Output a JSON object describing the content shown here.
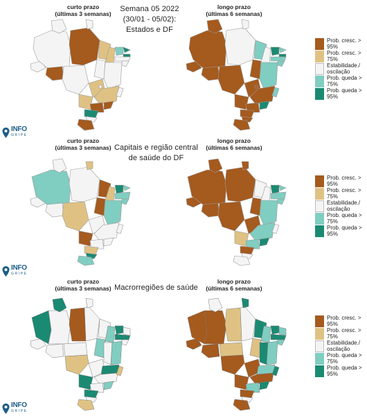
{
  "colors": {
    "prob_cresc_95": "#a55a1e",
    "prob_cresc_75": "#dfc283",
    "estabilidade": "#f4f4f4",
    "prob_queda_75": "#80cdc1",
    "prob_queda_95": "#1b8a73",
    "border": "#aaaaaa"
  },
  "logo": {
    "name": "INFO",
    "sub": "GRIPE"
  },
  "legend": [
    {
      "label": "Prob. cresc. > 95%",
      "color": "#a55a1e"
    },
    {
      "label": "Prob. cresc. > 75%",
      "color": "#dfc283"
    },
    {
      "label": "Estabilidade./ oscilação",
      "color": "#f4f4f4"
    },
    {
      "label": "Prob. queda > 75%",
      "color": "#80cdc1"
    },
    {
      "label": "Prob. queda > 95%",
      "color": "#1b8a73"
    }
  ],
  "rows": [
    {
      "title_lines": [
        "Semana 05 2022",
        "(30/01 - 05/02):",
        "Estados e DF"
      ],
      "left_label_1": "curto prazo",
      "left_label_2": "(últimas 3 semanas)",
      "right_label_1": "longo prazo",
      "right_label_2": "(últimas 6 semanas)",
      "short_map_icon": "brazil-states-short-term-map",
      "long_map_icon": "brazil-states-long-term-map"
    },
    {
      "title_lines": [
        "Capitais e região central",
        "de saúde do DF"
      ],
      "left_label_1": "curto prazo",
      "left_label_2": "(últimas 3 semanas)",
      "right_label_1": "longo prazo",
      "right_label_2": "(últimas 6 semanas)",
      "short_map_icon": "brazil-capitals-short-term-map",
      "long_map_icon": "brazil-capitals-long-term-map"
    },
    {
      "title_lines": [
        "Macrorregiões de saúde"
      ],
      "left_label_1": "curto prazo",
      "left_label_2": "(últimas 3 semanas)",
      "right_label_1": "longo prazo",
      "right_label_2": "(últimas 6 semanas)",
      "short_map_icon": "brazil-macroregions-short-term-map",
      "long_map_icon": "brazil-macroregions-long-term-map"
    }
  ]
}
